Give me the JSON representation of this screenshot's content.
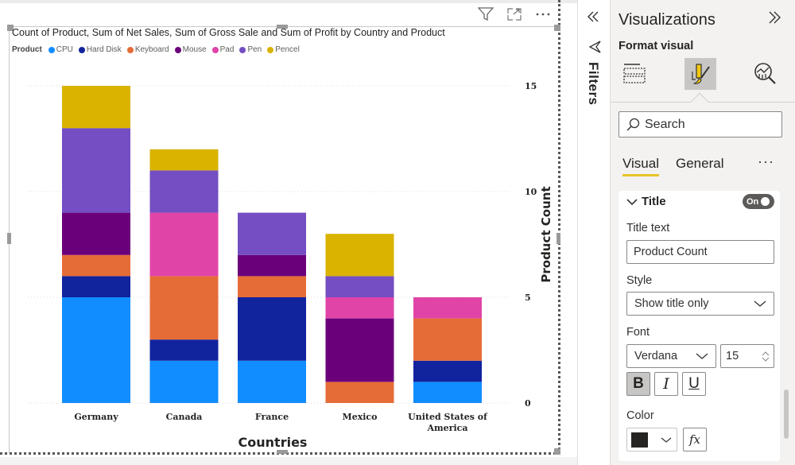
{
  "visual_header": {
    "filter_icon": "funnel-icon",
    "focus_icon": "focus-mode-icon",
    "more_icon": "more-options-icon"
  },
  "chart": {
    "title": "Count of Product, Sum of Net Sales, Sum of Gross Sale and Sum of Profit by Country and Product",
    "legend_title": "Product",
    "legend": [
      {
        "name": "CPU",
        "color": "#118DFF"
      },
      {
        "name": "Hard Disk",
        "color": "#12239E"
      },
      {
        "name": "Keyboard",
        "color": "#E66C37"
      },
      {
        "name": "Mouse",
        "color": "#6B007B"
      },
      {
        "name": "Pad",
        "color": "#E044A7"
      },
      {
        "name": "Pen",
        "color": "#744EC2"
      },
      {
        "name": "Pencel",
        "color": "#D9B300"
      }
    ]
  },
  "chart_data": {
    "type": "bar",
    "stacked": true,
    "title": "Count of Product, Sum of Net Sales, Sum of Gross Sale and Sum of Profit by Country and Product",
    "xlabel": "Countries",
    "ylabel": "Product Count",
    "y_axis_position": "right",
    "ylim": [
      0,
      15
    ],
    "yticks": [
      "0",
      "5",
      "10",
      "15"
    ],
    "grid": true,
    "legend_position": "top-left",
    "categories": [
      "Germany",
      "Canada",
      "France",
      "Mexico",
      "United States of America"
    ],
    "category_labels": [
      [
        "Germany"
      ],
      [
        "Canada"
      ],
      [
        "France"
      ],
      [
        "Mexico"
      ],
      [
        "United States of",
        "America"
      ]
    ],
    "series": [
      {
        "name": "CPU",
        "color": "#118DFF",
        "values": [
          5,
          2,
          2,
          0,
          1
        ]
      },
      {
        "name": "Hard Disk",
        "color": "#12239E",
        "values": [
          1,
          1,
          3,
          0,
          1
        ]
      },
      {
        "name": "Keyboard",
        "color": "#E66C37",
        "values": [
          1,
          3,
          1,
          1,
          2
        ]
      },
      {
        "name": "Mouse",
        "color": "#6B007B",
        "values": [
          2,
          0,
          1,
          3,
          0
        ]
      },
      {
        "name": "Pad",
        "color": "#E044A7",
        "values": [
          0,
          3,
          0,
          1,
          1
        ]
      },
      {
        "name": "Pen",
        "color": "#744EC2",
        "values": [
          4,
          2,
          2,
          1,
          0
        ]
      },
      {
        "name": "Pencel",
        "color": "#D9B300",
        "values": [
          2,
          1,
          0,
          2,
          0
        ]
      }
    ]
  },
  "filters": {
    "label": "Filters",
    "collapse_icon": "double-chevron-left-icon"
  },
  "viz_pane": {
    "title": "Visualizations",
    "expand_icon": "double-chevron-right-icon",
    "subtitle": "Format visual",
    "search_placeholder": "Search",
    "tabs": [
      {
        "label": "Visual",
        "active": true
      },
      {
        "label": "General",
        "active": false
      }
    ],
    "more_label": "···",
    "title_card": {
      "header": "Title",
      "toggle_label": "On",
      "toggle_on": true,
      "title_text_label": "Title text",
      "title_text_value": "Product Count",
      "style_label": "Style",
      "style_value": "Show title only",
      "font_label": "Font",
      "font_value": "Verdana",
      "font_size": "15",
      "bold_label": "B",
      "italic_label": "I",
      "underline_label": "U",
      "bold_active": true,
      "color_label": "Color",
      "color_value": "#252423",
      "fx_label": "fx"
    }
  }
}
